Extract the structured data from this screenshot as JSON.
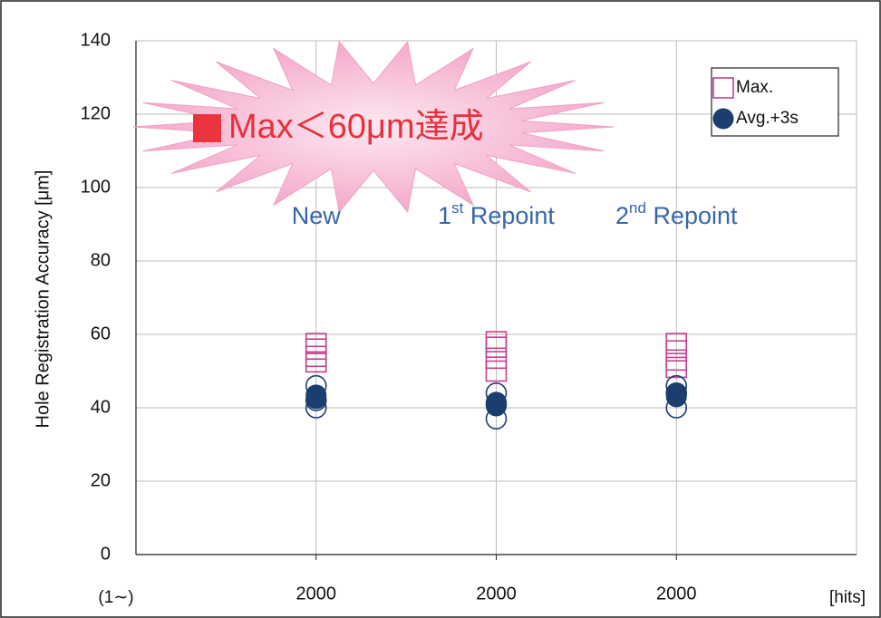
{
  "chart_data": {
    "type": "scatter",
    "y_label": "Hole Registration Accuracy  [μm]",
    "categories": [
      "2000",
      "2000",
      "2000"
    ],
    "x_start_label": "(1∼)",
    "x_unit_label": "[hits]",
    "ylim": [
      0,
      140
    ],
    "yticks": [
      0,
      20,
      40,
      60,
      80,
      100,
      120,
      140
    ],
    "grid": true,
    "series": [
      {
        "name": "Max.",
        "marker": "square-open",
        "color": "#c2418e",
        "values": [
          [
            57.5,
            56,
            54,
            52.5
          ],
          [
            58,
            56.5,
            53.5,
            50
          ],
          [
            57.5,
            55.5,
            53,
            51
          ]
        ]
      },
      {
        "marker": "circle-open",
        "color": "#1c3e6e",
        "values": [
          [
            46,
            42,
            40
          ],
          [
            44,
            41,
            37
          ],
          [
            46,
            44,
            40
          ]
        ]
      },
      {
        "name": "Avg.+3s",
        "marker": "circle",
        "color": "#1c3e6e",
        "values": [
          [
            43.5,
            42.5
          ],
          [
            41.5,
            40.5
          ],
          [
            44,
            43
          ]
        ]
      }
    ],
    "callout": "Max＜60μm達成",
    "annotations": [
      {
        "text": "New"
      },
      {
        "text": "1",
        "sup": "st",
        "rest": " Repoint"
      },
      {
        "text": "2",
        "sup": "nd",
        "rest": " Repoint"
      }
    ]
  }
}
